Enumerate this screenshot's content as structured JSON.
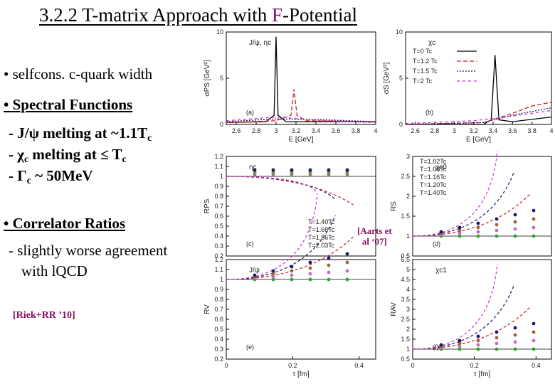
{
  "slide": {
    "title_prefix": "3.2.2 T-matrix Approach with ",
    "title_accent": "F",
    "title_suffix": "-Potential",
    "bullet1": "• selfcons. c-quark width",
    "bullet2_head": "• Spectral Functions",
    "jpsi_line": "- J/ψ melting at ~1.1T",
    "jpsi_sub": "c",
    "chi_line": "- χ",
    "chi_sub": "c",
    "chi_rest": " melting at ≤ T",
    "chi_sub2": "c",
    "gamma_line": "-  Γ",
    "gamma_sub": "c",
    "gamma_rest": " ~ 50MeV",
    "bullet3_head": "• Correlator Ratios",
    "bullet3_l1": "- slightly worse agreement",
    "bullet3_l2": "with lQCD",
    "citation": "[Riek+RR ’10]",
    "citation2_l1": "[Aarts et",
    "citation2_l2": "al ‘07]"
  },
  "colors": {
    "title_accent": "#7a0f6b",
    "citation": "#8b0d5c",
    "red": "#cc2222",
    "magenta": "#cc33cc",
    "navy": "#1a1a66"
  },
  "chart_data": [
    {
      "panel": "(a)",
      "type": "line",
      "ylabel": "σPS [GeV²]",
      "xlabel": "E [GeV]",
      "label": "J/ψ, ηc",
      "xlim": [
        2.5,
        4.0
      ],
      "ylim": [
        0,
        10
      ],
      "xticks": [
        "2.6",
        "2.8",
        "3",
        "3.2",
        "3.4",
        "3.6",
        "3.8",
        "4"
      ],
      "yticks": [
        "0",
        "5",
        "10"
      ],
      "series": [
        {
          "x": [
            2.5,
            2.9,
            2.98,
            3.0,
            3.02,
            3.1,
            4.0
          ],
          "y": [
            0.2,
            0.3,
            1.0,
            9.5,
            1.0,
            0.3,
            0.3
          ]
        },
        {
          "x": [
            2.5,
            3.0,
            3.15,
            3.18,
            3.21,
            3.3,
            4.0
          ],
          "y": [
            0.2,
            0.4,
            1.0,
            3.8,
            1.0,
            0.4,
            0.3
          ]
        },
        {
          "x": [
            2.5,
            3.0,
            3.5,
            4.0
          ],
          "y": [
            0.3,
            0.6,
            0.5,
            0.3
          ]
        },
        {
          "x": [
            2.5,
            3.0,
            3.5,
            4.0
          ],
          "y": [
            0.4,
            0.8,
            0.4,
            0.2
          ]
        }
      ]
    },
    {
      "panel": "(b)",
      "type": "line",
      "ylabel": "σS [GeV²]",
      "xlabel": "E [GeV]",
      "label": "χc",
      "xlim": [
        2.5,
        4.0
      ],
      "ylim": [
        0,
        10
      ],
      "xticks": [
        "2.6",
        "2.8",
        "3",
        "3.2",
        "3.4",
        "3.6",
        "3.8",
        "4"
      ],
      "yticks": [
        "0",
        "5",
        "10"
      ],
      "legend": [
        "T=0 Tc",
        "T=1.2 Tc",
        "T=1.5 Tc",
        "T=2 Tc"
      ],
      "series": [
        {
          "x": [
            2.5,
            3.3,
            3.38,
            3.42,
            3.46,
            3.6,
            4.0
          ],
          "y": [
            0,
            0,
            0.5,
            7.5,
            0.5,
            0.3,
            0.8
          ]
        },
        {
          "x": [
            2.5,
            3.3,
            3.6,
            3.8,
            4.0
          ],
          "y": [
            0,
            0.2,
            1.2,
            2.0,
            2.4
          ]
        },
        {
          "x": [
            2.5,
            3.3,
            3.6,
            4.0
          ],
          "y": [
            0,
            0.2,
            1.0,
            1.8
          ]
        },
        {
          "x": [
            2.5,
            3.2,
            3.6,
            4.0
          ],
          "y": [
            0.1,
            0.4,
            0.9,
            1.5
          ]
        }
      ]
    },
    {
      "panel": "(c)",
      "type": "line",
      "ylabel": "RPS",
      "label": "ηc",
      "xlim": [
        0,
        0.45
      ],
      "ylim": [
        0.2,
        1.2
      ],
      "yticks": [
        "0.2",
        "0.3",
        "0.4",
        "0.5",
        "0.6",
        "0.7",
        "0.8",
        "0.9",
        "1",
        "1.1",
        "1.2"
      ],
      "legend": [
        "T=1.40Tc",
        "T=1.68Tc",
        "T=1.86Tc",
        "T=2.03Tc"
      ]
    },
    {
      "panel": "(d)",
      "type": "line",
      "ylabel": "RS",
      "label": "χc0",
      "xlim": [
        0,
        0.45
      ],
      "ylim": [
        0.5,
        3
      ],
      "yticks": [
        "0.5",
        "1",
        "1.5",
        "2",
        "2.5",
        "3"
      ],
      "legend": [
        "T=1.02Tc",
        "T=1.08Tc",
        "T=1.16Tc",
        "T=1.20Tc",
        "T=1.40Tc"
      ]
    },
    {
      "panel": "(e)",
      "type": "line",
      "ylabel": "RV",
      "xlabel": "τ [fm]",
      "label": "J/ψ",
      "xlim": [
        0,
        0.45
      ],
      "ylim": [
        0.2,
        1.2
      ],
      "xticks": [
        "0",
        "0.2",
        "0.4"
      ],
      "yticks": [
        "0.2",
        "0.3",
        "0.4",
        "0.5",
        "0.6",
        "0.7",
        "0.8",
        "0.9",
        "1",
        "1.1",
        "1.2"
      ]
    },
    {
      "panel": "(f)",
      "type": "line",
      "ylabel": "RAV",
      "xlabel": "τ [fm]",
      "label": "χc1",
      "xlim": [
        0,
        0.45
      ],
      "ylim": [
        0.5,
        5.5
      ],
      "xticks": [
        "0",
        "0.2",
        "0.4"
      ],
      "yticks": [
        "0.5",
        "1",
        "1.5",
        "2",
        "2.5",
        "3",
        "3.5",
        "4",
        "4.5",
        "5",
        "5.5"
      ]
    }
  ]
}
